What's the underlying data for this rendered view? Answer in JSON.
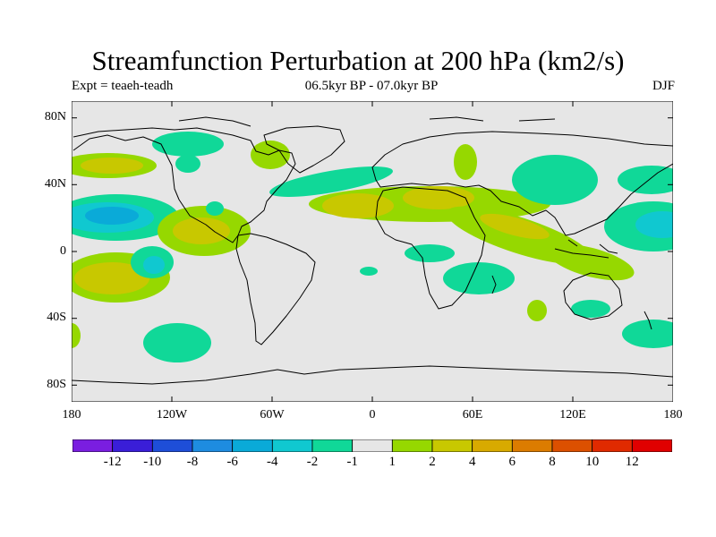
{
  "title": "Streamfunction Perturbation at 200 hPa (km2/s)",
  "subtitle_left": "Expt = teaeh-teadh",
  "subtitle_center": "06.5kyr BP - 07.0kyr BP",
  "subtitle_right": "DJF",
  "y_tick_labels": [
    "80N",
    "40N",
    "0",
    "40S",
    "80S"
  ],
  "x_tick_labels": [
    "180",
    "120W",
    "60W",
    "0",
    "60E",
    "120E",
    "180"
  ],
  "colorbar": {
    "labels": [
      "-12",
      "-10",
      "-8",
      "-6",
      "-4",
      "-2",
      "-1",
      "1",
      "2",
      "4",
      "6",
      "8",
      "10",
      "12"
    ],
    "colors": [
      "#7a1ee0",
      "#3a1ed8",
      "#1e4ed8",
      "#1e8ce0",
      "#0aaad8",
      "#10c8d0",
      "#10d898",
      "#e6e6e6",
      "#96d800",
      "#c8c800",
      "#d8aa00",
      "#dc7c00",
      "#dc5000",
      "#e02a00",
      "#e00000"
    ]
  },
  "chart_data": {
    "type": "heatmap",
    "title": "Streamfunction Perturbation at 200 hPa (km2/s)",
    "field": "streamfunction perturbation, 200 hPa, DJF",
    "xlim": [
      -180,
      180
    ],
    "ylim": [
      -90,
      90
    ],
    "levels": [
      -12,
      -10,
      -8,
      -6,
      -4,
      -2,
      -1,
      1,
      2,
      4,
      6,
      8,
      10,
      12
    ],
    "anomalies": [
      {
        "lon": -155,
        "lat": 20,
        "value": -5
      },
      {
        "lon": -145,
        "lat": 20,
        "value": -5
      },
      {
        "lon": -140,
        "lat": 55,
        "value": 2
      },
      {
        "lon": -155,
        "lat": -20,
        "value": 4
      },
      {
        "lon": -120,
        "lat": -10,
        "value": -3
      },
      {
        "lon": -90,
        "lat": 10,
        "value": 4
      },
      {
        "lon": -115,
        "lat": 70,
        "value": -1.5
      },
      {
        "lon": -35,
        "lat": 60,
        "value": 1.5
      },
      {
        "lon": -25,
        "lat": 40,
        "value": -1.5
      },
      {
        "lon": 10,
        "lat": 25,
        "value": 4
      },
      {
        "lon": 45,
        "lat": 30,
        "value": 4
      },
      {
        "lon": 50,
        "lat": 45,
        "value": 1.5
      },
      {
        "lon": 75,
        "lat": 20,
        "value": 4
      },
      {
        "lon": 115,
        "lat": 5,
        "value": 2
      },
      {
        "lon": 110,
        "lat": 45,
        "value": -1.5
      },
      {
        "lon": 35,
        "lat": -5,
        "value": -1.5
      },
      {
        "lon": 55,
        "lat": -15,
        "value": -1.5
      },
      {
        "lon": 140,
        "lat": -35,
        "value": -1.5
      },
      {
        "lon": 170,
        "lat": 15,
        "value": -4
      },
      {
        "lon": 165,
        "lat": 40,
        "value": -1.5
      },
      {
        "lon": 160,
        "lat": -45,
        "value": -1.5
      },
      {
        "lon": -120,
        "lat": -55,
        "value": -1.5
      },
      {
        "lon": 100,
        "lat": -35,
        "value": 1.5
      },
      {
        "lon": -175,
        "lat": -50,
        "value": 2
      }
    ]
  }
}
